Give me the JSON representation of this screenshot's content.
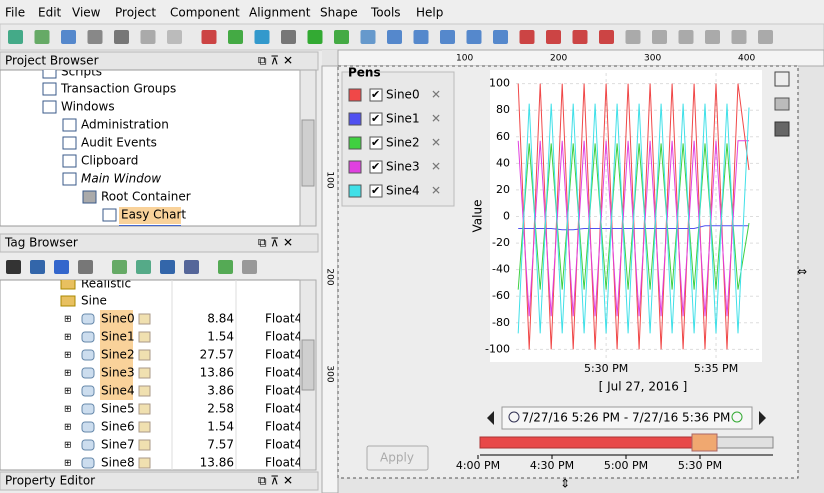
{
  "menu": [
    "File",
    "Edit",
    "View",
    "Project",
    "Component",
    "Alignment",
    "Shape",
    "Tools",
    "Help"
  ],
  "project_browser": {
    "title": "Project Browser",
    "items": [
      "Scripts",
      "Transaction Groups",
      "Windows",
      "Administration",
      "Audit Events",
      "Clipboard",
      "Main Window",
      "Root Container",
      "Easy Chart"
    ]
  },
  "tag_browser": {
    "title": "Tag Browser",
    "folders": [
      "Realistic",
      "Sine"
    ],
    "rows": [
      [
        "Sine0",
        8.84,
        "Float4"
      ],
      [
        "Sine1",
        1.54,
        "Float4"
      ],
      [
        "Sine2",
        27.57,
        "Float4"
      ],
      [
        "Sine3",
        13.86,
        "Float4"
      ],
      [
        "Sine4",
        3.86,
        "Float4"
      ],
      [
        "Sine5",
        2.58,
        "Float4"
      ],
      [
        "Sine6",
        1.54,
        "Float4"
      ],
      [
        "Sine7",
        7.57,
        "Float4"
      ],
      [
        "Sine8",
        13.86,
        "Float4"
      ]
    ]
  },
  "property_editor": {
    "title": "Property Editor"
  },
  "rulers": {
    "top": [
      100,
      200,
      300,
      400
    ],
    "left": [
      100,
      200,
      300
    ]
  },
  "pens": {
    "title": "Pens"
  },
  "range": {
    "text": "7/27/16 5:26 PM - 7/27/16 5:36 PM"
  },
  "overview": {
    "ticks": [
      "4:00 PM",
      "4:30 PM",
      "5:00 PM",
      "5:30 PM"
    ]
  },
  "apply_button": "Apply",
  "chart_data": {
    "type": "line",
    "y_label": "Value",
    "x_label": "[ Jul 27, 2016 ]",
    "x": [
      1046,
      1046.5,
      1047,
      1047.5,
      1048,
      1048.5,
      1049,
      1049.5,
      1050,
      1050.5,
      1051,
      1051.5,
      1052,
      1052.5,
      1053,
      1053.5,
      1054,
      1054.5,
      1055,
      1055.5,
      1056,
      1056.5
    ],
    "series": [
      {
        "name": "Sine0",
        "color": "#f04848",
        "values": [
          100,
          -100,
          100,
          -100,
          100,
          -100,
          100,
          -100,
          100,
          -100,
          100,
          -100,
          100,
          -100,
          100,
          -100,
          100,
          -100,
          100,
          -100,
          100,
          35
        ]
      },
      {
        "name": "Sine1",
        "color": "#5050f0",
        "values": [
          -9,
          -9,
          -9,
          -9,
          -10,
          -10,
          -9,
          -9,
          -9,
          -9,
          -9,
          -9,
          -9,
          -9,
          -9,
          -9,
          -9,
          -7,
          -7,
          -7,
          -7,
          -7
        ]
      },
      {
        "name": "Sine2",
        "color": "#40d040",
        "values": [
          -55,
          55,
          -55,
          55,
          -55,
          55,
          -55,
          55,
          -55,
          55,
          -55,
          55,
          -55,
          55,
          -55,
          55,
          -55,
          55,
          -55,
          55,
          -55,
          -5
        ]
      },
      {
        "name": "Sine3",
        "color": "#e040e0",
        "values": [
          57,
          -75,
          57,
          -75,
          57,
          -75,
          57,
          -75,
          57,
          -75,
          57,
          -75,
          57,
          -75,
          57,
          -75,
          57,
          -75,
          57,
          -75,
          57,
          57
        ]
      },
      {
        "name": "Sine4",
        "color": "#40e0e8",
        "values": [
          -88,
          85,
          -88,
          85,
          -88,
          85,
          -88,
          85,
          -88,
          85,
          -88,
          85,
          -88,
          85,
          -88,
          85,
          -88,
          85,
          -88,
          85,
          -88,
          82
        ]
      }
    ],
    "xlim": [
      1045.9,
      1057
    ],
    "ylim": [
      -108,
      108
    ],
    "xticks": [
      {
        "value": 1050,
        "label": "5:30 PM"
      },
      {
        "value": 1055,
        "label": "5:35 PM"
      }
    ],
    "yticks": [
      -100,
      -80,
      -60,
      -40,
      -20,
      0,
      20,
      40,
      60,
      80,
      100
    ],
    "grid": true
  }
}
